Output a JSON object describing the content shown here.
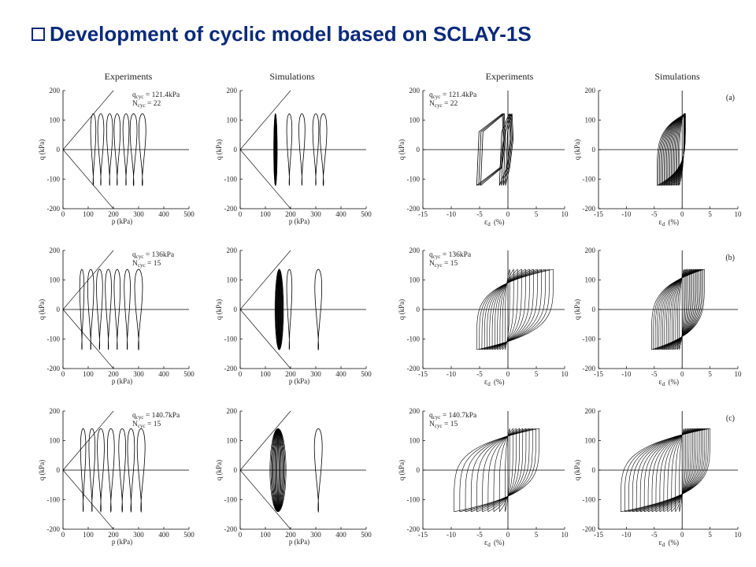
{
  "slide": {
    "title": "Development of cyclic model based on SCLAY-1S",
    "bullet_icon": "hollow-square-bullet",
    "title_color": "#0b2a7a"
  },
  "figure": {
    "left_group_headers": [
      "Experiments",
      "Simulations"
    ],
    "right_group_headers": [
      "Experiments",
      "Simulations"
    ],
    "ylabel_q": "q (kPa)",
    "xlabel_p": "p (kPa)",
    "xlabel_eps": "ε_d (%)",
    "line_color": "#000000"
  },
  "chart_data": [
    {
      "id": "p-exp-a",
      "type": "line",
      "row": 0,
      "col": 0,
      "xlabel": "p (kPa)",
      "ylabel": "q (kPa)",
      "xlim": [
        0,
        500
      ],
      "ylim": [
        -200,
        200
      ],
      "xticks": [
        0,
        100,
        200,
        300,
        400,
        500
      ],
      "yticks": [
        -200,
        -100,
        0,
        100,
        200
      ],
      "annotation": [
        "q_cyc = 121.4kPa",
        "N_cyc = 22"
      ],
      "header": "Experiments",
      "failure_line_slope": 1.0,
      "loops": [
        {
          "p_center": 120,
          "dp": 12
        },
        {
          "p_center": 150,
          "dp": 14
        },
        {
          "p_center": 185,
          "dp": 14
        },
        {
          "p_center": 215,
          "dp": 14
        },
        {
          "p_center": 250,
          "dp": 14
        },
        {
          "p_center": 280,
          "dp": 16
        },
        {
          "p_center": 315,
          "dp": 16
        }
      ],
      "q_amp": 121.4
    },
    {
      "id": "p-sim-a",
      "type": "line",
      "row": 0,
      "col": 1,
      "xlabel": "p (kPa)",
      "ylabel": "q (kPa)",
      "xlim": [
        0,
        500
      ],
      "ylim": [
        -200,
        200
      ],
      "xticks": [
        0,
        100,
        200,
        300,
        400,
        500
      ],
      "yticks": [
        -200,
        -100,
        0,
        100,
        200
      ],
      "header": "Simulations",
      "failure_line_slope": 1.0,
      "dense_band": {
        "p_center": 140,
        "count": 22,
        "width": 10
      },
      "loops": [
        {
          "p_center": 195,
          "dp": 12
        },
        {
          "p_center": 245,
          "dp": 14
        },
        {
          "p_center": 300,
          "dp": 14
        },
        {
          "p_center": 330,
          "dp": 16
        }
      ],
      "q_amp": 121.4
    },
    {
      "id": "e-exp-a",
      "type": "line",
      "row": 0,
      "col": 2,
      "xlabel": "ε_d (%)",
      "ylabel": "q (kPa)",
      "xlim": [
        -15,
        10
      ],
      "ylim": [
        -200,
        200
      ],
      "xticks": [
        -15,
        -10,
        -5,
        0,
        5,
        10
      ],
      "yticks": [
        -200,
        -100,
        0,
        100,
        200
      ],
      "annotation": [
        "q_cyc = 121.4kPa",
        "N_cyc = 22"
      ],
      "header": "Experiments",
      "loops": [
        {
          "e_left": -5.5,
          "e_right": -1.0,
          "count": 3
        },
        {
          "e_left": -1.5,
          "e_right": 0.2,
          "count": 4
        }
      ],
      "q_amp": 121.4
    },
    {
      "id": "e-sim-a",
      "type": "line",
      "row": 0,
      "col": 3,
      "xlabel": "ε_d (%)",
      "ylabel": "q (kPa)",
      "xlim": [
        -15,
        10
      ],
      "ylim": [
        -200,
        200
      ],
      "xticks": [
        -15,
        -10,
        -5,
        0,
        5,
        10
      ],
      "yticks": [
        -200,
        -100,
        0,
        100,
        200
      ],
      "header": "Simulations",
      "panel_label": "(a)",
      "fan": {
        "count": 20,
        "e_min": -4.5,
        "e_max": 0.6
      },
      "q_amp": 121.4
    },
    {
      "id": "p-exp-b",
      "type": "line",
      "row": 1,
      "col": 0,
      "xlabel": "p (kPa)",
      "ylabel": "q (kPa)",
      "xlim": [
        0,
        500
      ],
      "ylim": [
        -200,
        200
      ],
      "xticks": [
        0,
        100,
        200,
        300,
        400,
        500
      ],
      "yticks": [
        -200,
        -100,
        0,
        100,
        200
      ],
      "annotation": [
        "q_cyc = 136kPa",
        "N_cyc = 15"
      ],
      "failure_line_slope": 1.0,
      "loops": [
        {
          "p_center": 75,
          "dp": 10
        },
        {
          "p_center": 110,
          "dp": 14
        },
        {
          "p_center": 145,
          "dp": 14
        },
        {
          "p_center": 180,
          "dp": 14
        },
        {
          "p_center": 215,
          "dp": 14
        },
        {
          "p_center": 255,
          "dp": 14
        },
        {
          "p_center": 300,
          "dp": 18
        }
      ],
      "q_amp": 136
    },
    {
      "id": "p-sim-b",
      "type": "line",
      "row": 1,
      "col": 1,
      "xlabel": "p (kPa)",
      "ylabel": "q (kPa)",
      "xlim": [
        0,
        500
      ],
      "ylim": [
        -200,
        200
      ],
      "xticks": [
        0,
        100,
        200,
        300,
        400,
        500
      ],
      "yticks": [
        -200,
        -100,
        0,
        100,
        200
      ],
      "failure_line_slope": 1.0,
      "dense_band": {
        "p_center": 155,
        "count": 16,
        "width": 30
      },
      "loops": [
        {
          "p_center": 195,
          "dp": 12
        },
        {
          "p_center": 310,
          "dp": 16
        }
      ],
      "q_amp": 136
    },
    {
      "id": "e-exp-b",
      "type": "line",
      "row": 1,
      "col": 2,
      "xlabel": "ε_d (%)",
      "ylabel": "q (kPa)",
      "xlim": [
        -15,
        10
      ],
      "ylim": [
        -200,
        200
      ],
      "xticks": [
        -15,
        -10,
        -5,
        0,
        5,
        10
      ],
      "yticks": [
        -200,
        -100,
        0,
        100,
        200
      ],
      "annotation": [
        "q_cyc = 136kPa",
        "N_cyc = 15"
      ],
      "fan": {
        "count": 12,
        "e_min": -5.5,
        "e_max": 8
      },
      "q_amp": 136
    },
    {
      "id": "e-sim-b",
      "type": "line",
      "row": 1,
      "col": 3,
      "xlabel": "ε_d (%)",
      "ylabel": "q (kPa)",
      "xlim": [
        -15,
        10
      ],
      "ylim": [
        -200,
        200
      ],
      "xticks": [
        -15,
        -10,
        -5,
        0,
        5,
        10
      ],
      "yticks": [
        -200,
        -100,
        0,
        100,
        200
      ],
      "panel_label": "(b)",
      "fan": {
        "count": 16,
        "e_min": -5.5,
        "e_max": 4
      },
      "q_amp": 136
    },
    {
      "id": "p-exp-c",
      "type": "line",
      "row": 2,
      "col": 0,
      "xlabel": "p (kPa)",
      "ylabel": "q (kPa)",
      "xlim": [
        0,
        500
      ],
      "ylim": [
        -200,
        200
      ],
      "xticks": [
        0,
        100,
        200,
        300,
        400,
        500
      ],
      "yticks": [
        -200,
        -100,
        0,
        100,
        200
      ],
      "annotation": [
        "q_cyc = 140.7kPa",
        "N_cyc = 15"
      ],
      "failure_line_slope": 1.0,
      "loops": [
        {
          "p_center": 80,
          "dp": 12
        },
        {
          "p_center": 115,
          "dp": 14
        },
        {
          "p_center": 150,
          "dp": 16
        },
        {
          "p_center": 190,
          "dp": 16
        },
        {
          "p_center": 235,
          "dp": 16
        },
        {
          "p_center": 270,
          "dp": 16
        },
        {
          "p_center": 310,
          "dp": 18
        }
      ],
      "q_amp": 140.7
    },
    {
      "id": "p-sim-c",
      "type": "line",
      "row": 2,
      "col": 1,
      "xlabel": "p (kPa)",
      "ylabel": "q (kPa)",
      "xlim": [
        0,
        500
      ],
      "ylim": [
        -200,
        200
      ],
      "xticks": [
        0,
        100,
        200,
        300,
        400,
        500
      ],
      "yticks": [
        -200,
        -100,
        0,
        100,
        200
      ],
      "failure_line_slope": 1.0,
      "dense_band": {
        "p_center": 150,
        "count": 16,
        "width": 60
      },
      "loops": [
        {
          "p_center": 310,
          "dp": 18
        }
      ],
      "q_amp": 140.7
    },
    {
      "id": "e-exp-c",
      "type": "line",
      "row": 2,
      "col": 2,
      "xlabel": "ε_d (%)",
      "ylabel": "q (kPa)",
      "xlim": [
        -15,
        10
      ],
      "ylim": [
        -200,
        200
      ],
      "xticks": [
        -15,
        -10,
        -5,
        0,
        5,
        10
      ],
      "yticks": [
        -200,
        -100,
        0,
        100,
        200
      ],
      "annotation": [
        "q_cyc = 140.7kPa",
        "N_cyc = 15"
      ],
      "fan": {
        "count": 10,
        "e_min": -9.5,
        "e_max": 5.5
      },
      "q_amp": 140.7
    },
    {
      "id": "e-sim-c",
      "type": "line",
      "row": 2,
      "col": 3,
      "xlabel": "ε_d (%)",
      "ylabel": "q (kPa)",
      "xlim": [
        -15,
        10
      ],
      "ylim": [
        -200,
        200
      ],
      "xticks": [
        -15,
        -10,
        -5,
        0,
        5,
        10
      ],
      "yticks": [
        -200,
        -100,
        0,
        100,
        200
      ],
      "panel_label": "(c)",
      "fan": {
        "count": 16,
        "e_min": -11,
        "e_max": 5
      },
      "q_amp": 140.7
    }
  ]
}
